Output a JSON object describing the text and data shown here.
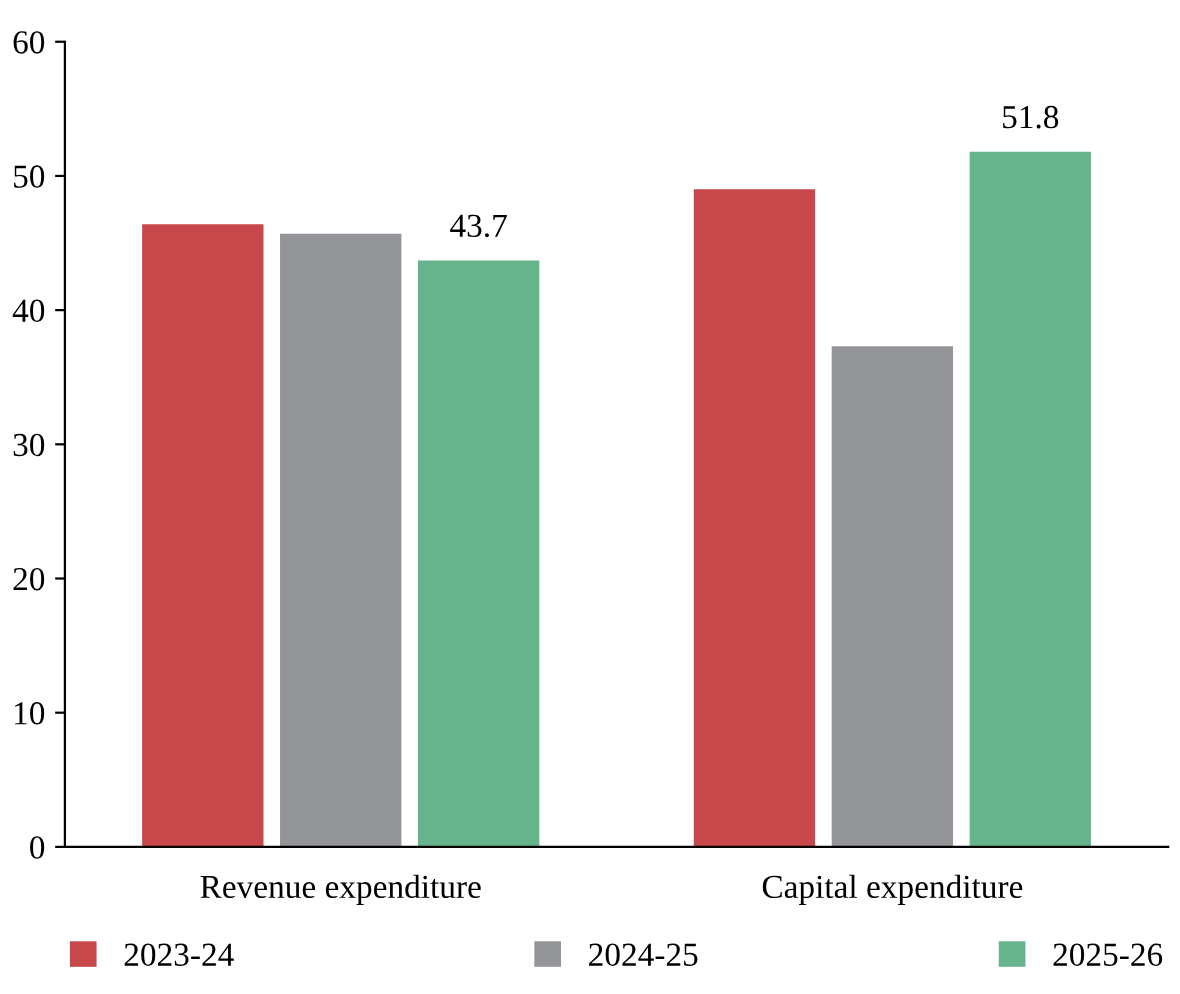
{
  "chart_data": {
    "type": "bar",
    "categories": [
      "Revenue expenditure",
      "Capital expenditure"
    ],
    "series": [
      {
        "name": "2023-24",
        "color": "#c8474a",
        "values": [
          46.4,
          49.0
        ]
      },
      {
        "name": "2024-25",
        "color": "#939598",
        "values": [
          45.7,
          37.3
        ]
      },
      {
        "name": "2025-26",
        "color": "#65b48c",
        "values": [
          43.7,
          51.8
        ],
        "value_labels": [
          "43.7",
          "51.8"
        ]
      }
    ],
    "ylim": [
      0,
      60
    ],
    "yticks": [
      0,
      10,
      20,
      30,
      40,
      50,
      60
    ],
    "grid": false,
    "legend": "bottom"
  }
}
